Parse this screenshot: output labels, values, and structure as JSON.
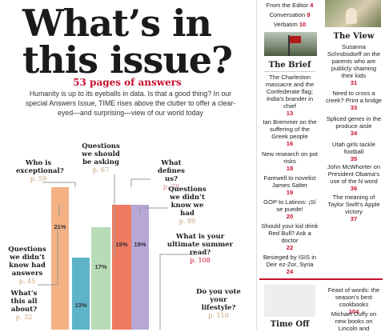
{
  "hero": {
    "title_line1": "What’s in",
    "title_line2": "this issue?",
    "subhead": "53 pages of answers",
    "intro": "Humanity is up to its eyeballs in data. Is that a good thing? In our special Answers Issue, TIME rises above the clutter to offer a clear-eyed—and surprising—view of our world today"
  },
  "questions": [
    {
      "text": "Who is exceptional?",
      "page": "p. 59"
    },
    {
      "text": "Questions we should be asking",
      "page": "p. 67"
    },
    {
      "text": "What defines us?",
      "page": "p. 78"
    },
    {
      "text": "Questions we didn’t know we had",
      "page": "p. 89"
    },
    {
      "text": "What is your ultimate summer read?",
      "page": "p. 108"
    },
    {
      "text": "Questions we didn’t know had answers",
      "page": "p. 45"
    },
    {
      "text": "What’s this all about?",
      "page": "p. 32"
    },
    {
      "text": "Do you vote your lifestyle?",
      "page": "p. 110"
    }
  ],
  "bars": {
    "labels": [
      "21%",
      "13%",
      "17%",
      "19%",
      "19%"
    ],
    "colors": [
      "#f4b183",
      "#5fb3c8",
      "#b9dcb8",
      "#ef7a5f",
      "#b7a7d6"
    ]
  },
  "toc_top": [
    {
      "text": "From the Editor",
      "num": "4"
    },
    {
      "text": "Conversation",
      "num": "8"
    },
    {
      "text": "Verbatim",
      "num": "10"
    }
  ],
  "brief": {
    "heading": "The Brief",
    "items": [
      {
        "text": "The Charleston massacre and the Confederate flag; India’s brander in chief",
        "num": "13"
      },
      {
        "text": "Ian Bremmer on the suffering of the Greek people",
        "num": "16"
      },
      {
        "text": "New research on pot risks",
        "num": "18"
      },
      {
        "text": "Farewell to novelist James Salter",
        "num": "19"
      },
      {
        "text": "GOP to Latinos: ¡Sí se puede!",
        "num": "20"
      },
      {
        "text": "Should your kid drink Red Bull? Ask a doctor",
        "num": "22"
      },
      {
        "text": "Besieged by ISIS in Deir ez-Zor, Syria",
        "num": "24"
      }
    ]
  },
  "view": {
    "heading": "The View",
    "items": [
      {
        "text": "Susanna Schrobsdorff on the parents who are publicly shaming their kids",
        "num": "31"
      },
      {
        "text": "Need to cross a creek? Print a bridge",
        "num": "33"
      },
      {
        "text": "Spliced genes in the produce aisle",
        "num": "34"
      },
      {
        "text": "Utah girls tackle football",
        "num": "35"
      },
      {
        "text": "John McWhorter on President Obama’s use of the N word",
        "num": "36"
      },
      {
        "text": "The meaning of Taylor Swift’s Apple victory",
        "num": "37"
      }
    ]
  },
  "bottom": {
    "time_off": "Time Off",
    "feast_text": "Feast of words: the season’s best cookbooks",
    "feast_num": "104",
    "duffy_text": "Michael Duffy on new books on Lincoln and"
  }
}
